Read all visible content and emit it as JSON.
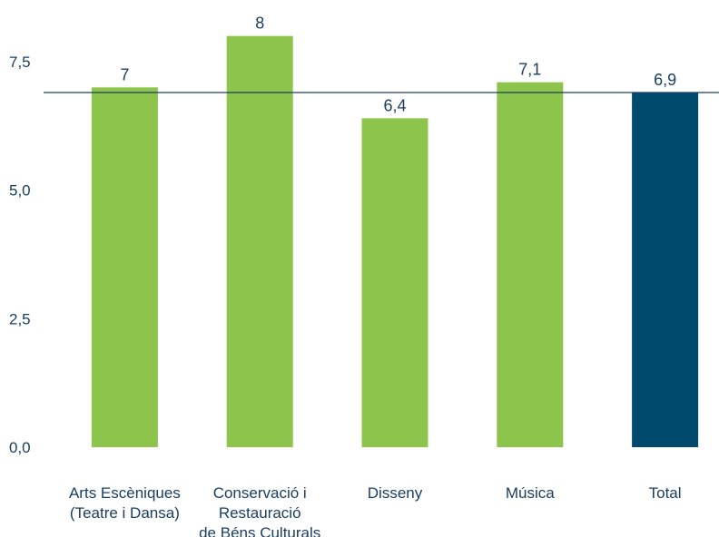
{
  "chart_data": {
    "type": "bar",
    "categories": [
      [
        "Arts Escèniques",
        "(Teatre i Dansa)"
      ],
      [
        "Conservació i",
        "Restauració",
        "de Béns Culturals"
      ],
      [
        "Disseny"
      ],
      [
        "Música"
      ],
      [
        "Total"
      ]
    ],
    "values": [
      7,
      8,
      6.4,
      7.1,
      6.9
    ],
    "value_labels": [
      "7",
      "8",
      "6,4",
      "7,1",
      "6,9"
    ],
    "bar_colors": [
      "#8dc54c",
      "#8dc54c",
      "#8dc54c",
      "#8dc54c",
      "#004a6e"
    ],
    "yticks": [
      {
        "value": 0,
        "label": "0,0"
      },
      {
        "value": 2.5,
        "label": "2,5"
      },
      {
        "value": 5,
        "label": "5,0"
      },
      {
        "value": 7.5,
        "label": "7,5"
      }
    ],
    "reference_line": 6.9,
    "reference_line_color": "#1a3e63",
    "ylim": [
      0,
      8
    ],
    "title": "",
    "xlabel": "",
    "ylabel": "",
    "grid": false,
    "legend": "none"
  }
}
